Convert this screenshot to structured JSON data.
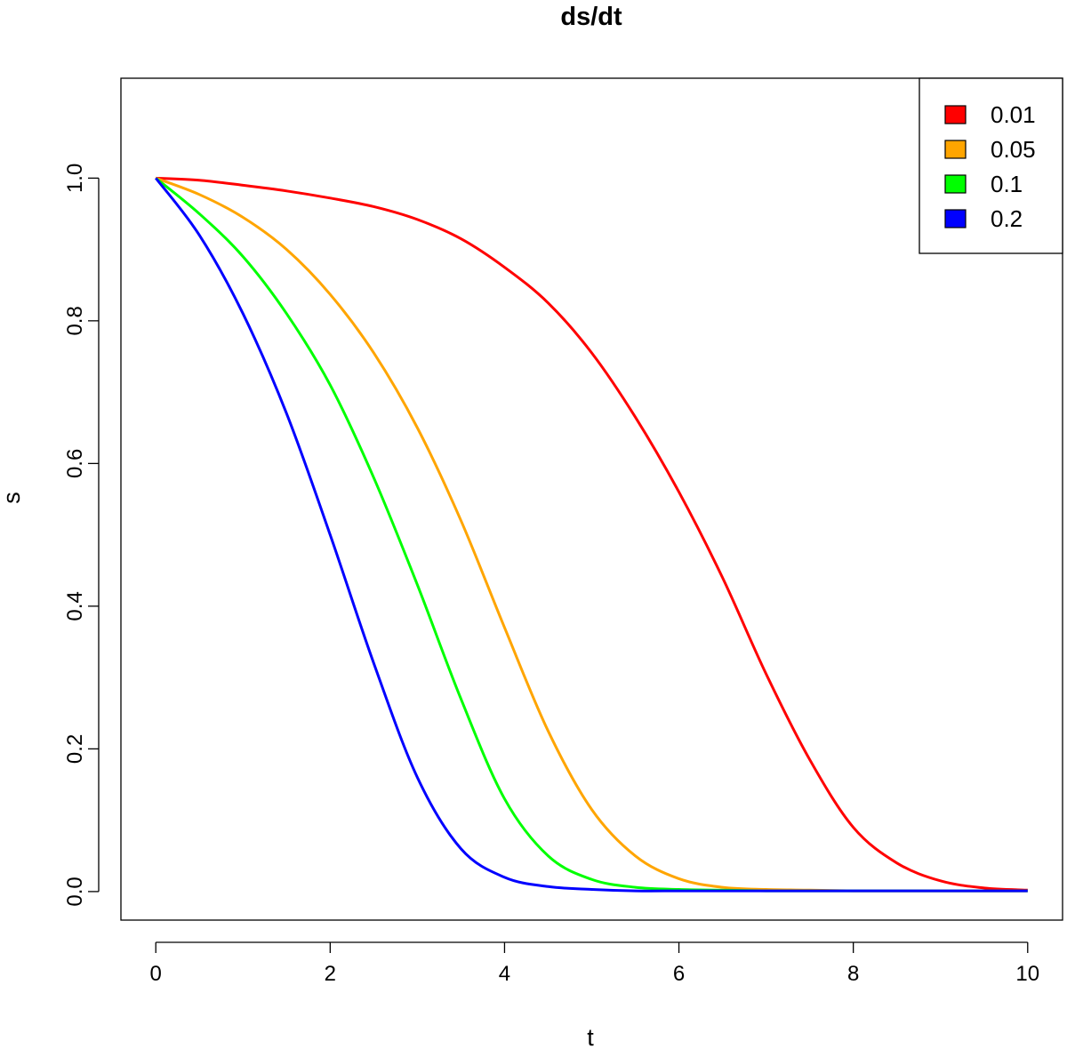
{
  "chart_data": {
    "type": "line",
    "title": "ds/dt",
    "xlabel": "t",
    "ylabel": "s",
    "xlim": [
      -0.4,
      10.4
    ],
    "ylim": [
      -0.04,
      1.14
    ],
    "x_ticks": [
      0,
      2,
      4,
      6,
      8,
      10
    ],
    "x_tick_labels": [
      "0",
      "2",
      "4",
      "6",
      "8",
      "10"
    ],
    "y_ticks": [
      0.0,
      0.2,
      0.4,
      0.6,
      0.8,
      1.0
    ],
    "y_tick_labels": [
      "0.0",
      "0.2",
      "0.4",
      "0.6",
      "0.8",
      "1.0"
    ],
    "grid": false,
    "legend_position": "top-right",
    "x": [
      0,
      0.5,
      1,
      1.5,
      2,
      2.5,
      3,
      3.5,
      4,
      4.5,
      5,
      5.5,
      6,
      6.5,
      7,
      7.5,
      8,
      8.5,
      9,
      9.5,
      10
    ],
    "series": [
      {
        "name": "0.01",
        "color": "#ff0000",
        "values": [
          1.0,
          0.997,
          0.99,
          0.982,
          0.972,
          0.96,
          0.942,
          0.915,
          0.875,
          0.825,
          0.755,
          0.665,
          0.56,
          0.44,
          0.305,
          0.185,
          0.09,
          0.04,
          0.015,
          0.005,
          0.002
        ]
      },
      {
        "name": "0.05",
        "color": "#ffa500",
        "values": [
          1.0,
          0.977,
          0.945,
          0.9,
          0.837,
          0.755,
          0.65,
          0.52,
          0.37,
          0.225,
          0.115,
          0.05,
          0.018,
          0.006,
          0.003,
          0.002,
          0.001,
          0.001,
          0.001,
          0.001,
          0.001
        ]
      },
      {
        "name": "0.1",
        "color": "#00ff00",
        "values": [
          1.0,
          0.95,
          0.89,
          0.81,
          0.71,
          0.58,
          0.43,
          0.27,
          0.13,
          0.05,
          0.017,
          0.006,
          0.003,
          0.002,
          0.001,
          0.001,
          0.001,
          0.001,
          0.001,
          0.001,
          0.001
        ]
      },
      {
        "name": "0.2",
        "color": "#0000ff",
        "values": [
          1.0,
          0.92,
          0.81,
          0.67,
          0.5,
          0.32,
          0.16,
          0.06,
          0.02,
          0.007,
          0.003,
          0.001,
          0.001,
          0.001,
          0.001,
          0.001,
          0.001,
          0.001,
          0.001,
          0.001,
          0.001
        ]
      }
    ]
  }
}
